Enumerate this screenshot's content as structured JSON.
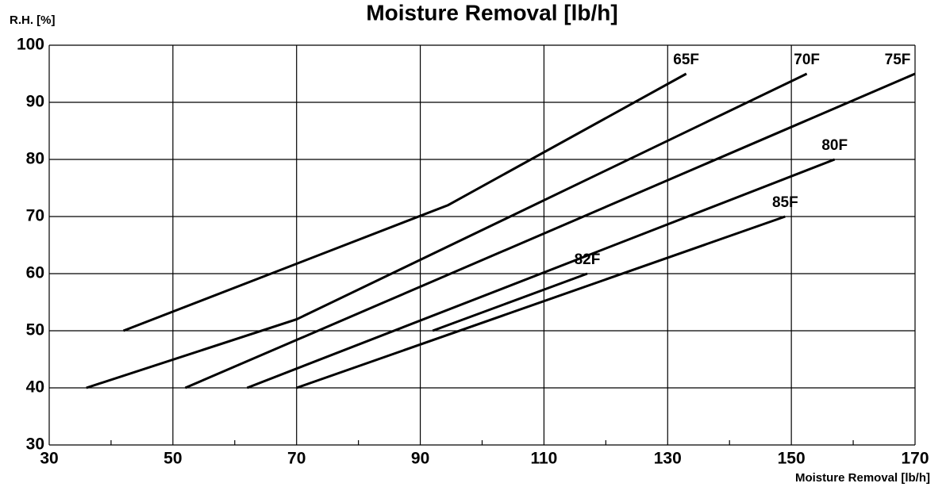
{
  "chart_data": {
    "type": "line",
    "title": "Moisture Removal [lb/h]",
    "y_label": "R.H. [%]",
    "x_label": "Moisture Removal [lb/h]",
    "xlim": [
      30,
      170
    ],
    "xticks": [
      30,
      50,
      70,
      90,
      110,
      130,
      150,
      170
    ],
    "xminor_ticks": [
      40,
      60,
      80,
      100,
      120,
      140,
      160
    ],
    "ylim": [
      30,
      100
    ],
    "yticks": [
      30,
      40,
      50,
      60,
      70,
      80,
      90,
      100
    ],
    "grid": true,
    "series": [
      {
        "name": "65F",
        "color": "#000000",
        "x": [
          42,
          94.5,
          133
        ],
        "values": [
          50,
          72,
          95
        ]
      },
      {
        "name": "70F",
        "color": "#000000",
        "x": [
          36,
          70,
          152.5
        ],
        "values": [
          40,
          52,
          95
        ]
      },
      {
        "name": "75F",
        "color": "#000000",
        "x": [
          52,
          170
        ],
        "values": [
          40,
          95
        ]
      },
      {
        "name": "80F",
        "color": "#000000",
        "x": [
          62,
          157
        ],
        "values": [
          40,
          80
        ]
      },
      {
        "name": "82F",
        "color": "#000000",
        "x": [
          92,
          117
        ],
        "values": [
          50,
          60
        ]
      },
      {
        "name": "85F",
        "color": "#000000",
        "x": [
          70,
          149
        ],
        "values": [
          40,
          70
        ]
      }
    ]
  }
}
